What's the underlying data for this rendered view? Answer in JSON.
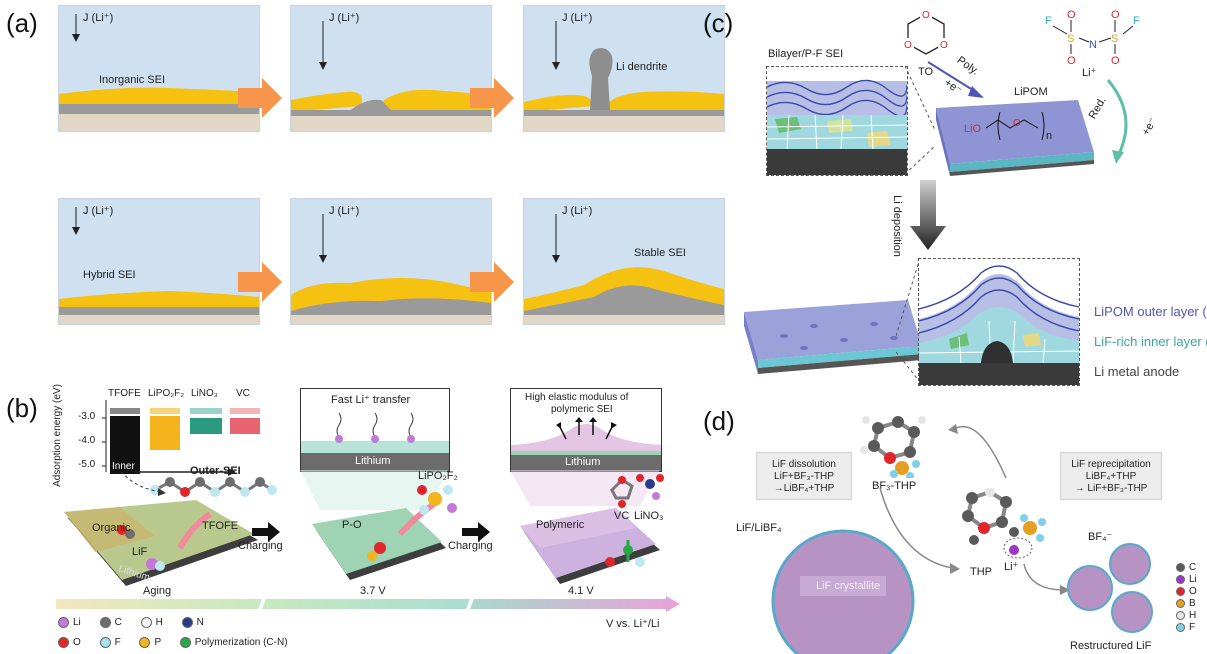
{
  "panels": {
    "a": {
      "label": "(a)",
      "flux": "J (Li⁺)",
      "row1": {
        "cell1": "Inorganic SEI",
        "cell3": "Li dendrite"
      },
      "row2": {
        "cell1": "Hybrid SEI",
        "cell3": "Stable SEI"
      }
    },
    "b": {
      "label": "(b)",
      "bar_labels": [
        "TFOFE",
        "LiPO₂F₂",
        "LiNO₃",
        "VC"
      ],
      "y_ticks": [
        "-3.0",
        "-4.0",
        "-5.0"
      ],
      "y_label": "Adsorption energy (eV)",
      "inner": "Inner",
      "outer": "Outer-SEI",
      "organic": "Organic",
      "lif": "LiF",
      "tfofe": "TFOFE",
      "lithium": "Lithium",
      "charging1": "Charging",
      "charging2": "Charging",
      "fast_transfer": "Fast Li⁺ transfer",
      "lithium2": "Lithium",
      "lipo2f2": "LiPO₂F₂",
      "po": "P-O",
      "high_modulus_1": "High elastic modulus of",
      "high_modulus_2": "polymeric SEI",
      "lithium3": "Lithium",
      "polymeric": "Polymeric",
      "vc": "VC",
      "lino3": "LiNO₃",
      "stage_aging": "Aging",
      "stage_37": "3.7 V",
      "stage_41": "4.1 V",
      "axis_label": "V vs. Li⁺/Li",
      "legend": [
        {
          "sym": "Li",
          "color": "#c27ad6"
        },
        {
          "sym": "C",
          "color": "#6d6d6d"
        },
        {
          "sym": "H",
          "color": "#f4f4f4"
        },
        {
          "sym": "N",
          "color": "#2a3a8c"
        },
        {
          "sym": "O",
          "color": "#e0262b"
        },
        {
          "sym": "F",
          "color": "#a8e2ec"
        },
        {
          "sym": "P",
          "color": "#f2b51f"
        },
        {
          "sym": "Polymerization (C-N)",
          "color": "#28a745"
        }
      ]
    },
    "c": {
      "label": "(c)",
      "to": "TO",
      "li_plus": "Li⁺",
      "bilayer": "Bilayer/P-F SEI",
      "poly": "Poly.",
      "poly_e": "+e⁻",
      "lipom": "LiPOM",
      "lio": "LiO",
      "n": "n",
      "red": "Red.",
      "red_e": "+e⁻",
      "deposition": "Li deposition",
      "outer_layer": "LiPOM outer layer (P)",
      "inner_layer": "LiF-rich inner layer (F)",
      "anode": "Li metal anode",
      "colors": {
        "outer": "#4f55b7",
        "inner": "#3aa7a0",
        "anode": "#444444"
      }
    },
    "d": {
      "label": "(d)",
      "dissolution_1": "LiF dissolution",
      "dissolution_2": "LiF+BF₃-THP",
      "dissolution_3": "→LiBF₄+THP",
      "reprecip_1": "LiF reprecipitation",
      "reprecip_2": "LiBF₄+THP",
      "reprecip_3": "→ LiF+BF₃-THP",
      "bf3thp": "BF₃-THP",
      "lif_libf4": "LiF/LiBF₄",
      "lif_crystallite": "LiF crystallite",
      "thp": "THP",
      "li_plus": "Li⁺",
      "bf4": "BF₄⁻",
      "restructured": "Restructured LiF",
      "legend": [
        {
          "sym": "C",
          "color": "#5a5a5a"
        },
        {
          "sym": "Li",
          "color": "#a033c8"
        },
        {
          "sym": "O",
          "color": "#e0262b"
        },
        {
          "sym": "B",
          "color": "#e3a020"
        },
        {
          "sym": "H",
          "color": "#e6e6e6"
        },
        {
          "sym": "F",
          "color": "#7fd0e6"
        }
      ]
    }
  }
}
